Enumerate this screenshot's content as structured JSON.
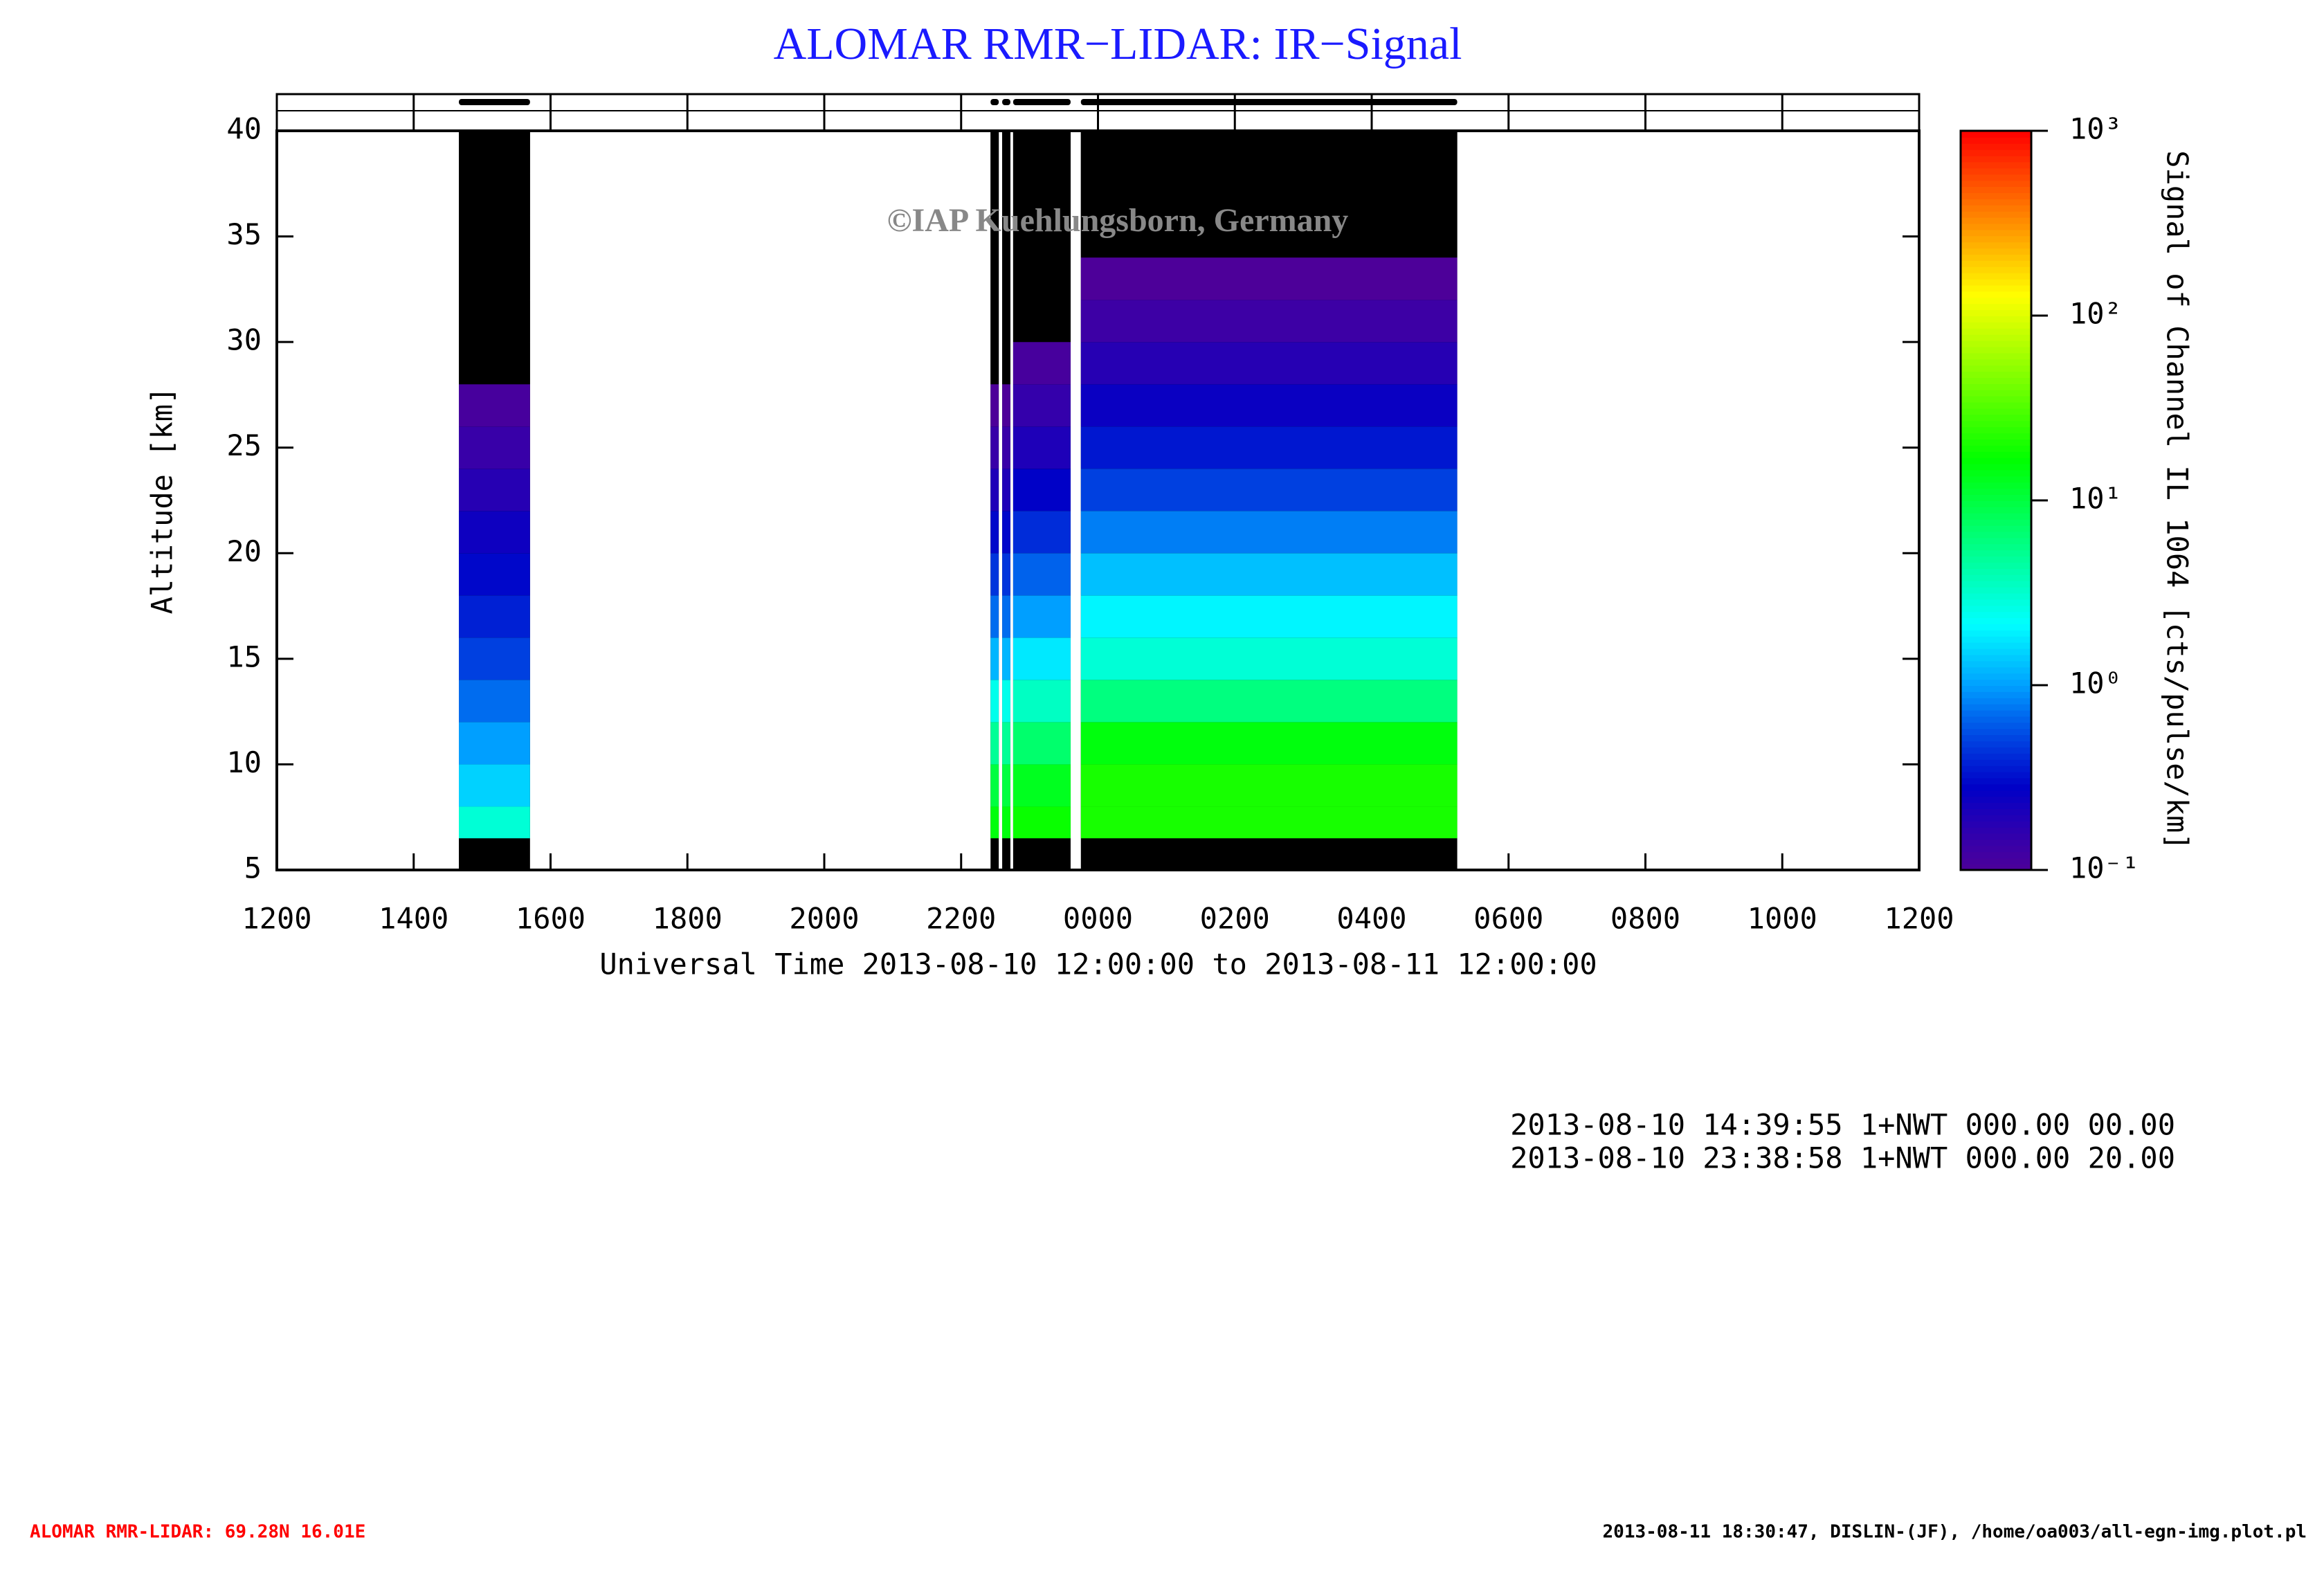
{
  "chart_data": {
    "type": "heatmap",
    "title": "ALOMAR RMR−LIDAR: IR−Signal",
    "watermark": "©IAP Kuehlungsborn, Germany",
    "xlabel": "Universal Time 2013-08-10 12:00:00 to 2013-08-11 12:00:00",
    "ylabel": "Altitude [km]",
    "colorbar_label": "Signal of Channel IL 1064 [cts/pulse/km]",
    "xlim": [
      12,
      36
    ],
    "xticks": [
      {
        "value": 12,
        "label": "1200"
      },
      {
        "value": 14,
        "label": "1400"
      },
      {
        "value": 16,
        "label": "1600"
      },
      {
        "value": 18,
        "label": "1800"
      },
      {
        "value": 20,
        "label": "2000"
      },
      {
        "value": 22,
        "label": "2200"
      },
      {
        "value": 24,
        "label": "0000"
      },
      {
        "value": 26,
        "label": "0200"
      },
      {
        "value": 28,
        "label": "0400"
      },
      {
        "value": 30,
        "label": "0600"
      },
      {
        "value": 32,
        "label": "0800"
      },
      {
        "value": 34,
        "label": "1000"
      },
      {
        "value": 36,
        "label": "1200"
      }
    ],
    "ylim": [
      5,
      40
    ],
    "yticks": [
      5,
      10,
      15,
      20,
      25,
      30,
      35,
      40
    ],
    "clim": [
      0.1,
      1000
    ],
    "log_color_scale": true,
    "cticks": [
      {
        "value": 0.1,
        "label": "10⁻¹"
      },
      {
        "value": 1,
        "label": "10⁰"
      },
      {
        "value": 10,
        "label": "10¹"
      },
      {
        "value": 100,
        "label": "10²"
      },
      {
        "value": 1000,
        "label": "10³"
      }
    ],
    "altitude_bins": [
      6.5,
      8,
      10,
      12,
      14,
      16,
      18,
      20,
      22,
      24,
      26,
      28,
      30,
      32,
      34,
      36,
      38,
      40
    ],
    "periods": [
      {
        "start": 14.66,
        "end": 15.7,
        "values": [
          3,
          1.5,
          1,
          0.7,
          0.5,
          0.38,
          0.3,
          0.24,
          0.18,
          0.14,
          0.11,
          0.08,
          0.06,
          0.05,
          0.04,
          0.03,
          0.02
        ]
      },
      {
        "start": 22.43,
        "end": 22.55,
        "values": [
          15,
          10,
          5,
          2.5,
          1.2,
          0.7,
          0.45,
          0.3,
          0.2,
          0.14,
          0.1,
          0.07,
          0.05,
          0.04,
          0.03,
          0.02,
          0.02
        ]
      },
      {
        "start": 22.6,
        "end": 22.72,
        "values": [
          15,
          10,
          5,
          2.5,
          1.2,
          0.7,
          0.45,
          0.3,
          0.2,
          0.14,
          0.1,
          0.07,
          0.05,
          0.04,
          0.03,
          0.02,
          0.02
        ]
      },
      {
        "start": 22.76,
        "end": 23.6,
        "values": [
          18,
          13,
          7,
          3.5,
          1.8,
          1,
          0.65,
          0.42,
          0.28,
          0.2,
          0.15,
          0.11,
          0.08,
          0.06,
          0.04,
          0.03,
          0.02
        ]
      },
      {
        "start": 23.75,
        "end": 29.25,
        "values": [
          20,
          20,
          15,
          6,
          3,
          2,
          1.3,
          0.8,
          0.5,
          0.35,
          0.25,
          0.18,
          0.13,
          0.1,
          0.06,
          0.04,
          0.03
        ]
      }
    ],
    "annotations": [
      "2013-08-10 14:39:55 1+NWT 000.00 00.00",
      "2013-08-10 23:38:58 1+NWT 000.00 20.00"
    ],
    "footer_left": "ALOMAR RMR-LIDAR: 69.28N 16.01E",
    "footer_right": "2013-08-11 18:30:47, DISLIN-(JF), /home/oa003/all-egn-img.plot.pl"
  }
}
